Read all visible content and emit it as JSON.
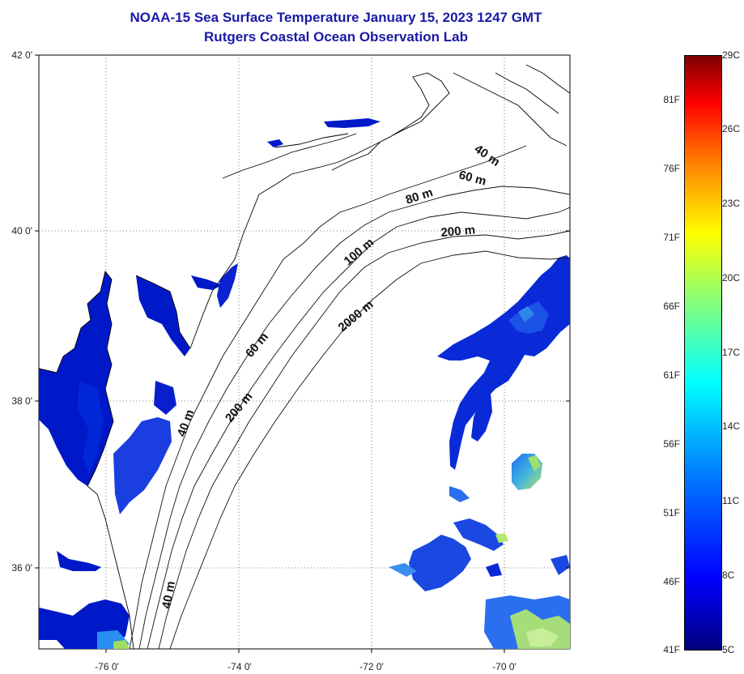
{
  "header": {
    "title": "NOAA-15 Sea Surface Temperature January 15, 2023 1247 GMT",
    "subtitle": "Rutgers Coastal Ocean Observation Lab"
  },
  "axes": {
    "lat_labels": [
      "42 0'",
      "40 0'",
      "38 0'",
      "36 0'"
    ],
    "lon_labels": [
      "-76 0'",
      "-74 0'",
      "-72 0'",
      "-70 0'"
    ]
  },
  "contours": [
    "40 m",
    "60 m",
    "80 m",
    "200 m",
    "100 m",
    "2000 m",
    "60 m",
    "40 m",
    "200 m",
    "40 m"
  ],
  "colorbar": {
    "fahrenheit": [
      "81F",
      "76F",
      "71F",
      "66F",
      "61F",
      "56F",
      "51F",
      "46F",
      "41F"
    ],
    "celsius": [
      "29C",
      "26C",
      "23C",
      "20C",
      "17C",
      "14C",
      "11C",
      "8C",
      "5C"
    ],
    "colors": [
      "#00007f",
      "#0000ff",
      "#0080ff",
      "#00ffff",
      "#80ff80",
      "#ffff00",
      "#ff8000",
      "#ff0000",
      "#7f0000"
    ]
  }
}
